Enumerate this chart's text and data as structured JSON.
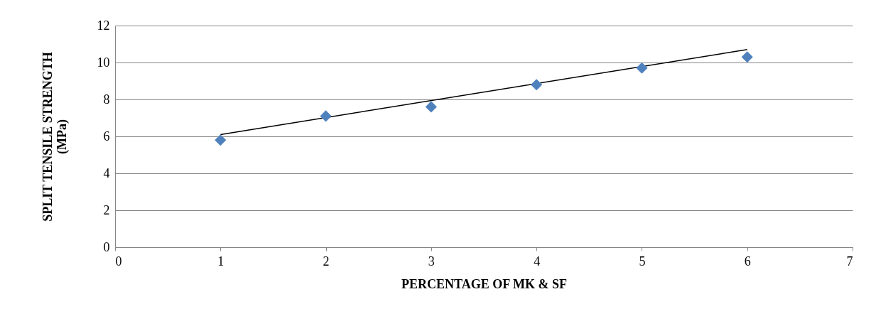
{
  "chart_data": {
    "type": "scatter",
    "xlabel": "PERCENTAGE  OF MK & SF",
    "ylabel": "SPLIT TENSILE STRENGTH\n(MPa)",
    "x": [
      1,
      2,
      3,
      4,
      5,
      6
    ],
    "series": [
      {
        "type": "scatter",
        "color": "#4f81bd",
        "marker": "diamond",
        "values": [
          5.8,
          7.1,
          7.6,
          8.8,
          9.7,
          10.3
        ]
      },
      {
        "type": "line",
        "color": "#000000",
        "x": [
          1,
          6
        ],
        "values": [
          6.1,
          10.7
        ]
      }
    ],
    "xlim": [
      0,
      7
    ],
    "xticks": [
      0,
      1,
      2,
      3,
      4,
      5,
      6,
      7
    ],
    "ylim": [
      0,
      12
    ],
    "yticks": [
      0,
      2,
      4,
      6,
      8,
      10,
      12
    ],
    "grid": "y"
  }
}
